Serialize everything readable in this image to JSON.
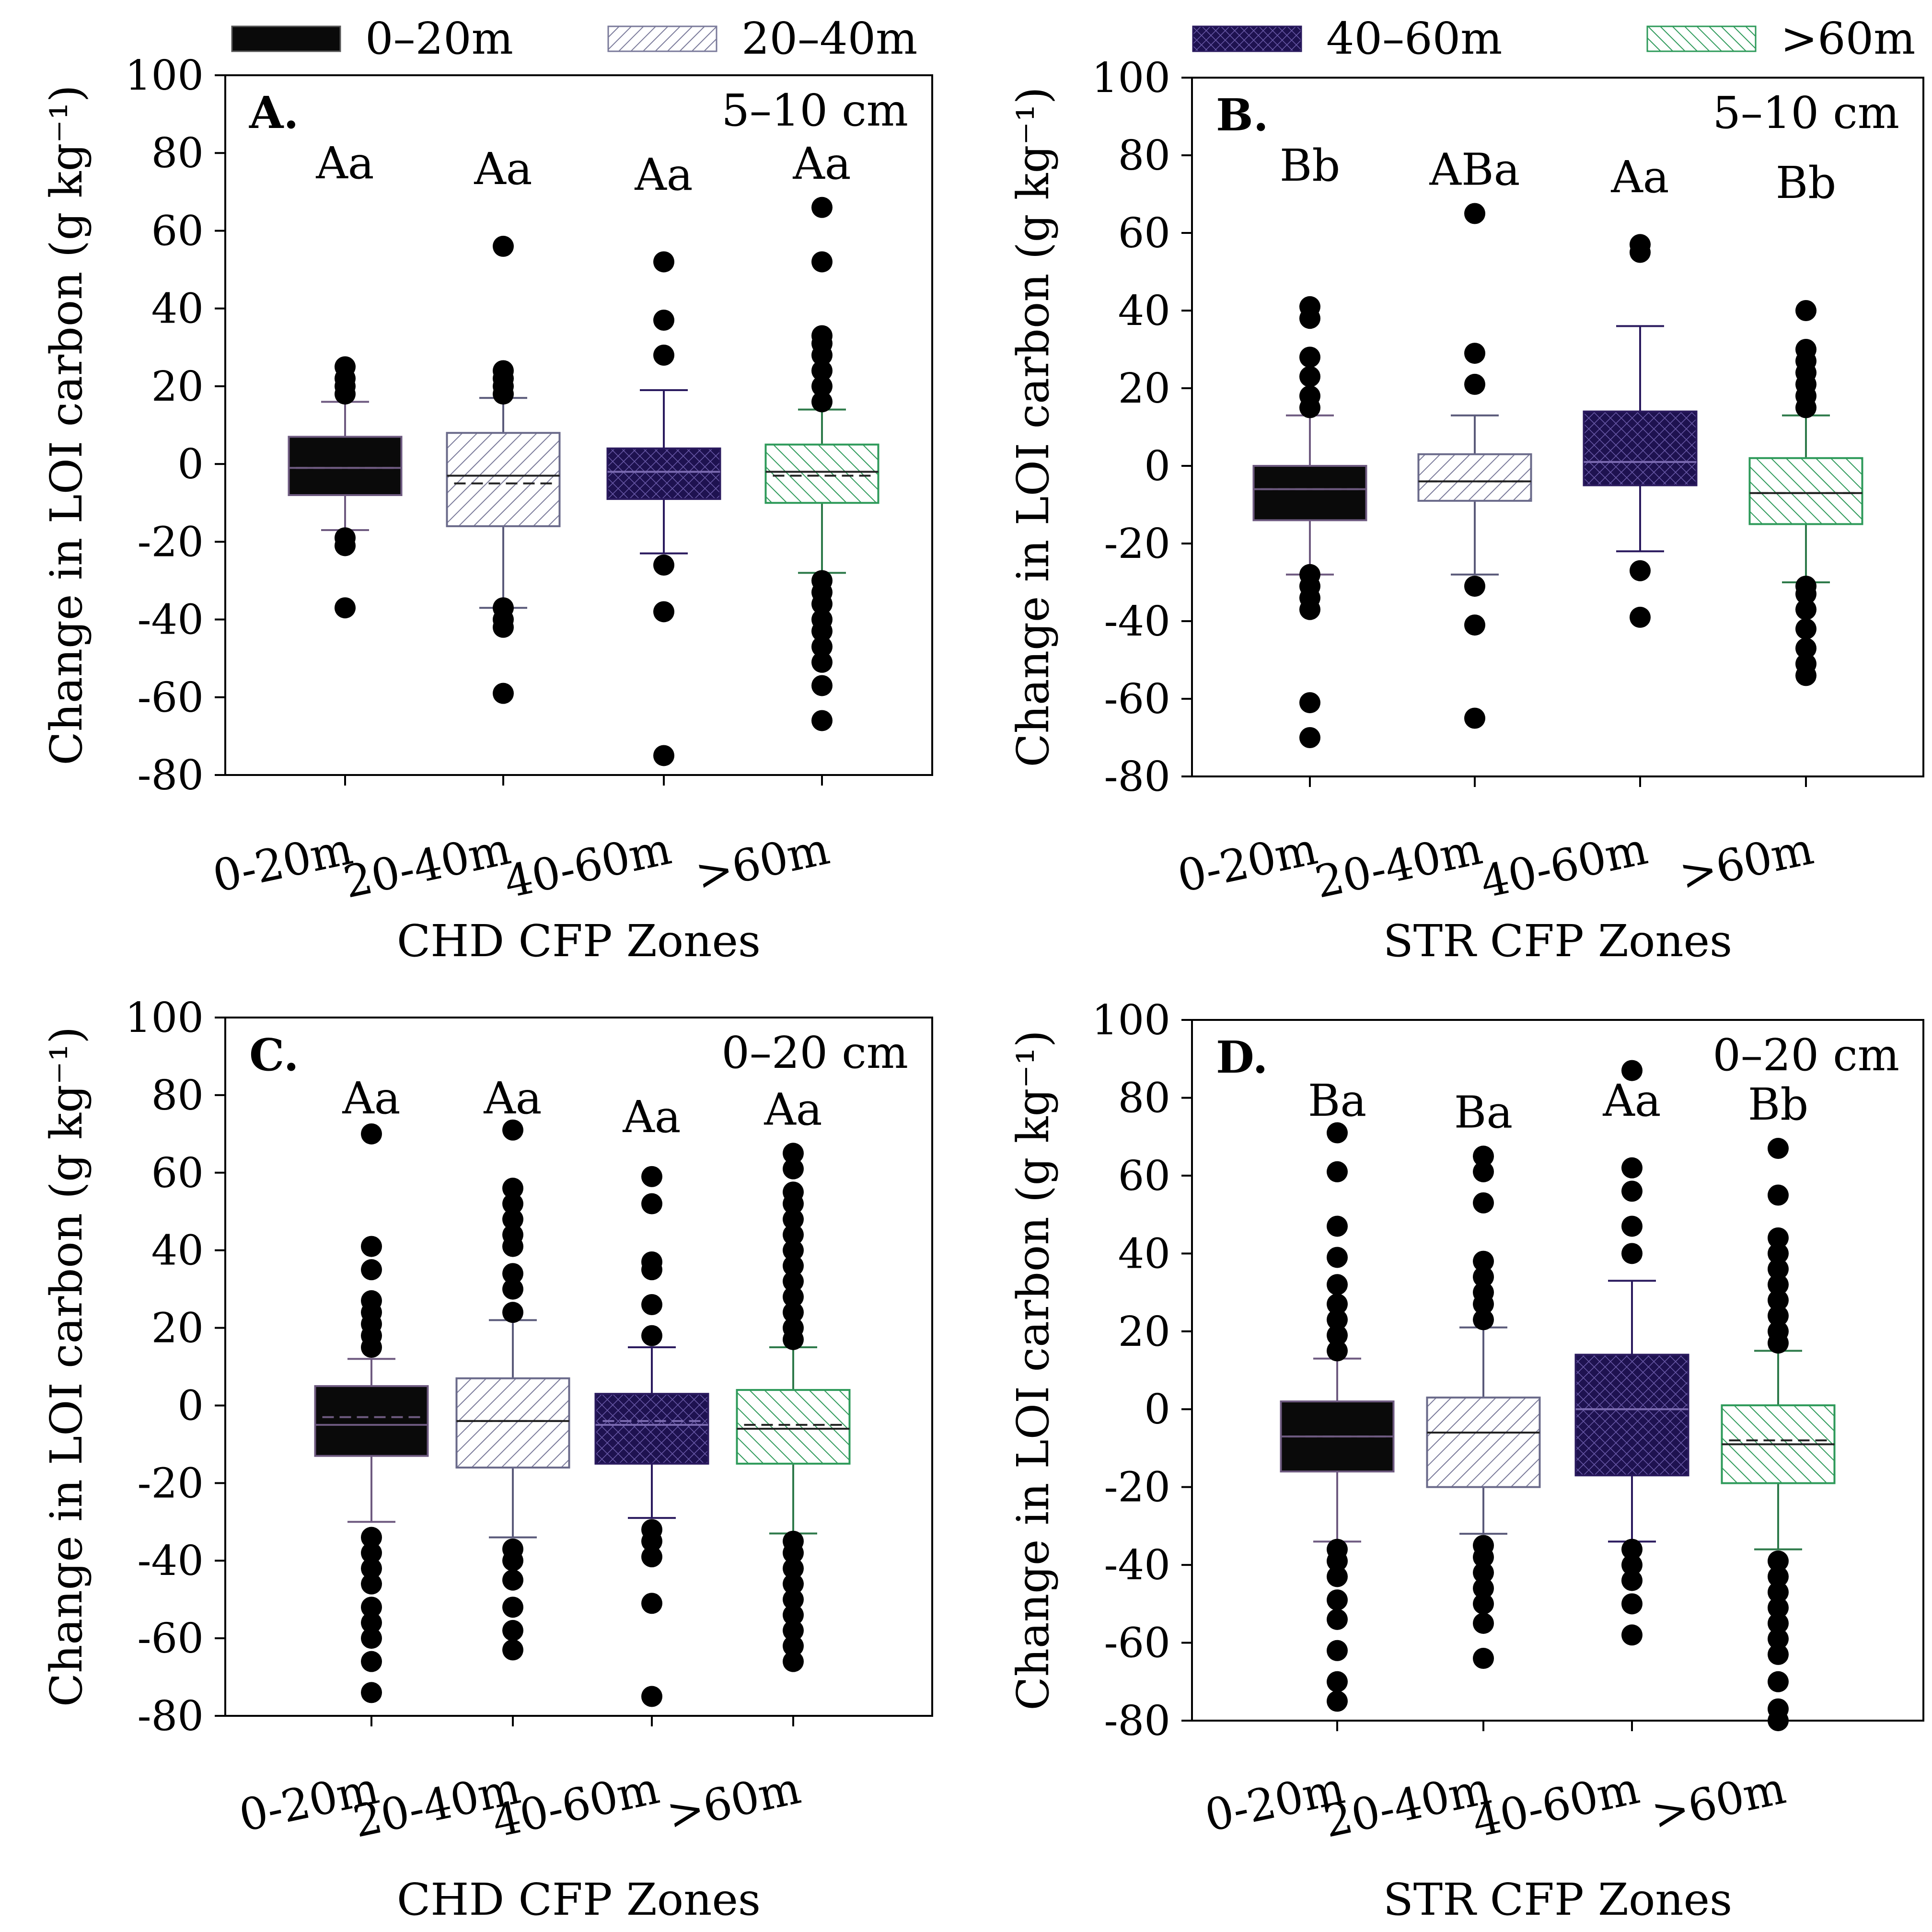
{
  "legend": {
    "items": [
      {
        "label": "0–20m",
        "pattern": "solid",
        "color": "#0a0a0a"
      },
      {
        "label": "20–40m",
        "pattern": "hatch-light",
        "color": "#7a7a9a"
      },
      {
        "label": "40–60m",
        "pattern": "crosshatch",
        "color": "#2a1a5e"
      },
      {
        "label": ">60m",
        "pattern": "hatch-green",
        "color": "#2e9a5a"
      }
    ]
  },
  "chart_data": [
    {
      "type": "box",
      "panel_label": "A.",
      "depth": "5–10 cm",
      "xlabel": "CHD  CFP Zones",
      "ylabel": "Change in LOI carbon (g kg⁻¹)",
      "ylim": [
        -80,
        100
      ],
      "yticks": [
        "100",
        "80",
        "60",
        "40",
        "20",
        "0",
        "-20",
        "-40",
        "-60",
        "-80"
      ],
      "categories": [
        "0-20m",
        "20-40m",
        "40-60m",
        ">60m"
      ],
      "letters": [
        "Aa",
        "Aa",
        "Aa",
        "Aa"
      ],
      "boxes": [
        {
          "whislo": -17,
          "q1": -8,
          "med": -1,
          "mean": -1,
          "q3": 7,
          "whishi": 16,
          "fliers": [
            -37,
            -21,
            -19,
            18,
            20,
            22,
            25
          ]
        },
        {
          "whislo": -37,
          "q1": -16,
          "med": -3,
          "mean": -5,
          "q3": 8,
          "whishi": 17,
          "fliers": [
            -59,
            -42,
            -40,
            -37,
            18,
            20,
            22,
            24,
            56
          ]
        },
        {
          "whislo": -23,
          "q1": -9,
          "med": -2,
          "mean": -2,
          "q3": 4,
          "whishi": 19,
          "fliers": [
            -75,
            -38,
            -26,
            28,
            37,
            52
          ]
        },
        {
          "whislo": -28,
          "q1": -10,
          "med": -2,
          "mean": -3,
          "q3": 5,
          "whishi": 14,
          "fliers": [
            -66,
            -57,
            -51,
            -47,
            -43,
            -40,
            -36,
            -33,
            -30,
            16,
            20,
            24,
            28,
            31,
            33,
            52,
            66
          ]
        }
      ]
    },
    {
      "type": "box",
      "panel_label": "B.",
      "depth": "5–10 cm",
      "xlabel": "STR CFP Zones",
      "ylabel": "Change in LOI carbon (g kg⁻¹)",
      "ylim": [
        -80,
        100
      ],
      "yticks": [
        "100",
        "80",
        "60",
        "40",
        "20",
        "0",
        "-20",
        "-40",
        "-60",
        "-80"
      ],
      "categories": [
        "0-20m",
        "20-40m",
        "40-60m",
        ">60m"
      ],
      "letters": [
        "Bb",
        "ABa",
        "Aa",
        "Bb"
      ],
      "boxes": [
        {
          "whislo": -28,
          "q1": -14,
          "med": -6,
          "mean": -6,
          "q3": 0,
          "whishi": 13,
          "fliers": [
            -70,
            -61,
            -37,
            -34,
            -31,
            -28,
            15,
            18,
            23,
            28,
            38,
            41
          ]
        },
        {
          "whislo": -28,
          "q1": -9,
          "med": -4,
          "mean": -4,
          "q3": 3,
          "whishi": 13,
          "fliers": [
            -65,
            -41,
            -31,
            21,
            29,
            65
          ]
        },
        {
          "whislo": -22,
          "q1": -5,
          "med": 1,
          "mean": 1,
          "q3": 14,
          "whishi": 36,
          "fliers": [
            -39,
            -27,
            55,
            57
          ]
        },
        {
          "whislo": -30,
          "q1": -15,
          "med": -7,
          "mean": -7,
          "q3": 2,
          "whishi": 13,
          "fliers": [
            -54,
            -51,
            -47,
            -42,
            -37,
            -33,
            -31,
            15,
            18,
            21,
            24,
            27,
            30,
            40
          ]
        }
      ]
    },
    {
      "type": "box",
      "panel_label": "C.",
      "depth": "0–20 cm",
      "xlabel": "CHD CFP Zones",
      "ylabel": "Change in LOI carbon (g kg⁻¹)",
      "ylim": [
        -80,
        100
      ],
      "yticks": [
        "100",
        "80",
        "60",
        "40",
        "20",
        "0",
        "-20",
        "-40",
        "-60",
        "-80"
      ],
      "categories": [
        "0-20m",
        "20-40m",
        "40-60m",
        ">60m"
      ],
      "letters": [
        "Aa",
        "Aa",
        "Aa",
        "Aa"
      ],
      "boxes": [
        {
          "whislo": -30,
          "q1": -13,
          "med": -5,
          "mean": -3,
          "q3": 5,
          "whishi": 12,
          "fliers": [
            -74,
            -66,
            -60,
            -56,
            -52,
            -46,
            -42,
            -38,
            -34,
            15,
            18,
            21,
            24,
            27,
            35,
            41,
            70
          ]
        },
        {
          "whislo": -34,
          "q1": -16,
          "med": -4,
          "mean": -4,
          "q3": 7,
          "whishi": 22,
          "fliers": [
            -63,
            -58,
            -52,
            -45,
            -40,
            -37,
            24,
            30,
            34,
            41,
            44,
            48,
            52,
            56,
            71
          ]
        },
        {
          "whislo": -29,
          "q1": -15,
          "med": -5,
          "mean": -4,
          "q3": 3,
          "whishi": 15,
          "fliers": [
            -75,
            -51,
            -39,
            -35,
            -32,
            18,
            26,
            35,
            37,
            52,
            59
          ]
        },
        {
          "whislo": -33,
          "q1": -15,
          "med": -6,
          "mean": -5,
          "q3": 4,
          "whishi": 15,
          "fliers": [
            -66,
            -62,
            -58,
            -54,
            -50,
            -46,
            -42,
            -38,
            -35,
            17,
            20,
            24,
            28,
            32,
            36,
            40,
            44,
            48,
            52,
            55,
            61,
            65
          ]
        }
      ]
    },
    {
      "type": "box",
      "panel_label": "D.",
      "depth": "0–20 cm",
      "xlabel": "STR CFP Zones",
      "ylabel": "Change in LOI carbon (g kg⁻¹)",
      "ylim": [
        -80,
        100
      ],
      "yticks": [
        "100",
        "80",
        "60",
        "40",
        "20",
        "0",
        "-20",
        "-40",
        "-60",
        "-80"
      ],
      "categories": [
        "0-20m",
        "20-40m",
        "40-60m",
        ">60m"
      ],
      "letters": [
        "Ba",
        "Ba",
        "Aa",
        "Bb"
      ],
      "boxes": [
        {
          "whislo": -34,
          "q1": -16,
          "med": -7,
          "mean": -7,
          "q3": 2,
          "whishi": 13,
          "fliers": [
            -75,
            -70,
            -62,
            -54,
            -49,
            -43,
            -39,
            -36,
            15,
            19,
            23,
            27,
            32,
            39,
            47,
            61,
            71
          ]
        },
        {
          "whislo": -32,
          "q1": -20,
          "med": -6,
          "mean": -6,
          "q3": 3,
          "whishi": 21,
          "fliers": [
            -64,
            -55,
            -50,
            -46,
            -42,
            -38,
            -35,
            23,
            27,
            30,
            34,
            38,
            53,
            61,
            65
          ]
        },
        {
          "whislo": -34,
          "q1": -17,
          "med": 0,
          "mean": 0,
          "q3": 14,
          "whishi": 33,
          "fliers": [
            -58,
            -50,
            -44,
            -40,
            -36,
            40,
            47,
            56,
            62,
            87
          ]
        },
        {
          "whislo": -36,
          "q1": -19,
          "med": -9,
          "mean": -8,
          "q3": 1,
          "whishi": 15,
          "fliers": [
            -80,
            -77,
            -70,
            -63,
            -59,
            -55,
            -51,
            -47,
            -43,
            -39,
            17,
            20,
            24,
            28,
            32,
            36,
            40,
            44,
            55,
            67
          ]
        }
      ]
    }
  ]
}
